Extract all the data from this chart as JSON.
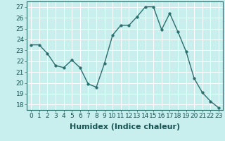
{
  "x": [
    0,
    1,
    2,
    3,
    4,
    5,
    6,
    7,
    8,
    9,
    10,
    11,
    12,
    13,
    14,
    15,
    16,
    17,
    18,
    19,
    20,
    21,
    22,
    23
  ],
  "y": [
    23.5,
    23.5,
    22.7,
    21.6,
    21.4,
    22.1,
    21.4,
    19.9,
    19.6,
    21.8,
    24.4,
    25.3,
    25.3,
    26.1,
    27.0,
    27.0,
    24.9,
    26.4,
    24.7,
    22.9,
    20.4,
    19.1,
    18.3,
    17.7
  ],
  "line_color": "#2d6e6e",
  "marker": "o",
  "marker_size": 2.5,
  "bg_color": "#c8eeee",
  "grid_color": "#ffffff",
  "xlabel": "Humidex (Indice chaleur)",
  "ylabel": "",
  "title": "",
  "xlim": [
    -0.5,
    23.5
  ],
  "ylim": [
    17.5,
    27.5
  ],
  "yticks": [
    18,
    19,
    20,
    21,
    22,
    23,
    24,
    25,
    26,
    27
  ],
  "xticks": [
    0,
    1,
    2,
    3,
    4,
    5,
    6,
    7,
    8,
    9,
    10,
    11,
    12,
    13,
    14,
    15,
    16,
    17,
    18,
    19,
    20,
    21,
    22,
    23
  ],
  "tick_fontsize": 6.5,
  "xlabel_fontsize": 8,
  "line_width": 1.0
}
